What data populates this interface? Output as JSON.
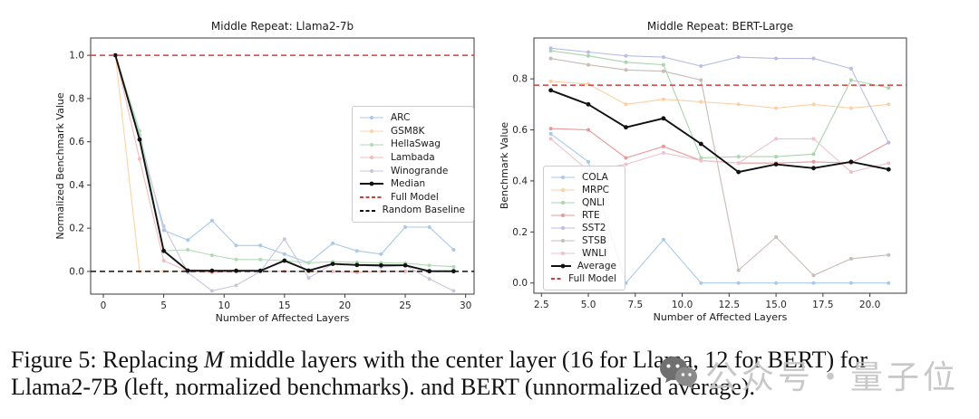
{
  "figure": {
    "caption_prefix": "Figure 5: Replacing ",
    "caption_italic": "M",
    "caption_rest": " middle layers with the center layer (16 for Llama, 12 for BERT) for",
    "caption_line2": "Llama2-7B (left, normalized benchmarks). and BERT (unnormalized average)."
  },
  "watermark": {
    "text": "公众号・量子位"
  },
  "chart_data": [
    {
      "type": "line",
      "name": "llama",
      "title": "Middle Repeat: Llama2-7b",
      "xlabel": "Number of Affected Layers",
      "ylabel": "Normalized Benchmark Value",
      "xlim": [
        -1.05,
        30.7
      ],
      "ylim": [
        -0.105,
        1.08
      ],
      "grid": false,
      "legend_position": "center-right",
      "xticks": {
        "vals": [
          0,
          5,
          10,
          15,
          20,
          25,
          30
        ],
        "labels": [
          "0",
          "5",
          "10",
          "15",
          "20",
          "25",
          "30"
        ]
      },
      "yticks": {
        "vals": [
          0.0,
          0.2,
          0.4,
          0.6,
          0.8,
          1.0
        ],
        "labels": [
          "0.0",
          "0.2",
          "0.4",
          "0.6",
          "0.8",
          "1.0"
        ]
      },
      "x": [
        1,
        3,
        5,
        7,
        9,
        11,
        13,
        15,
        17,
        19,
        21,
        23,
        25,
        27,
        29
      ],
      "series": [
        {
          "name": "ARC",
          "color": "#a8c9e8",
          "bold": false,
          "values": [
            1.0,
            0.63,
            0.19,
            0.145,
            0.235,
            0.12,
            0.12,
            0.08,
            0.04,
            0.13,
            0.095,
            0.08,
            0.205,
            0.205,
            0.1
          ]
        },
        {
          "name": "GSM8K",
          "color": "#fbd3a8",
          "bold": false,
          "values": [
            1.0,
            0.0,
            0.0,
            0.0,
            0.0,
            0.0,
            0.0,
            0.0,
            0.0,
            0.0,
            0.0,
            0.0,
            0.0,
            0.0,
            0.0
          ]
        },
        {
          "name": "HellaSwag",
          "color": "#b2dab3",
          "bold": false,
          "values": [
            1.0,
            0.65,
            0.095,
            0.1,
            0.075,
            0.055,
            0.055,
            0.05,
            0.04,
            0.045,
            0.042,
            0.04,
            0.038,
            0.028,
            0.022
          ]
        },
        {
          "name": "Lambada",
          "color": "#f0bcbc",
          "bold": false,
          "values": [
            1.0,
            0.52,
            0.05,
            0.0,
            -0.005,
            0.0,
            0.0,
            0.0,
            0.0,
            0.0,
            -0.005,
            0.0,
            0.0,
            0.0,
            0.0
          ]
        },
        {
          "name": "Winogrande",
          "color": "#c8c6dd",
          "bold": false,
          "values": [
            1.0,
            0.61,
            0.21,
            -0.005,
            -0.09,
            -0.065,
            0.0,
            0.15,
            -0.03,
            0.035,
            0.03,
            0.02,
            0.028,
            -0.035,
            -0.09
          ]
        },
        {
          "name": "Median",
          "color": "#111111",
          "bold": true,
          "values": [
            1.0,
            0.61,
            0.095,
            0.004,
            0.003,
            0.003,
            0.003,
            0.05,
            0.004,
            0.035,
            0.03,
            0.028,
            0.028,
            0.001,
            0.001
          ]
        }
      ],
      "hlines": [
        {
          "name": "Full Model",
          "y": 1.0,
          "color": "#d43d3d"
        },
        {
          "name": "Random Baseline",
          "y": 0.0,
          "color": "#111111"
        }
      ]
    },
    {
      "type": "line",
      "name": "bert",
      "title": "Middle Repeat: BERT-Large",
      "xlabel": "Number of Affected Layers",
      "ylabel": "Benchmark Value",
      "xlim": [
        2.1,
        21.95
      ],
      "ylim": [
        -0.04,
        0.96
      ],
      "grid": false,
      "legend_position": "bottom-left",
      "xticks": {
        "vals": [
          2.5,
          5,
          7.5,
          10,
          12.5,
          15,
          17.5,
          20
        ],
        "labels": [
          "2.5",
          "5.0",
          "7.5",
          "10.0",
          "12.5",
          "15.0",
          "17.5",
          "20.0"
        ]
      },
      "yticks": {
        "vals": [
          0.0,
          0.2,
          0.4,
          0.6,
          0.8
        ],
        "labels": [
          "0.0",
          "0.2",
          "0.4",
          "0.6",
          "0.8"
        ]
      },
      "x": [
        3,
        5,
        7,
        9,
        11,
        13,
        15,
        17,
        19,
        21
      ],
      "series": [
        {
          "name": "COLA",
          "color": "#a8c9e8",
          "bold": false,
          "values": [
            0.585,
            0.475,
            0.0,
            0.17,
            0.0,
            0.0,
            0.0,
            0.0,
            0.0,
            0.0
          ]
        },
        {
          "name": "MRPC",
          "color": "#fccfa4",
          "bold": false,
          "values": [
            0.79,
            0.78,
            0.7,
            0.72,
            0.71,
            0.7,
            0.685,
            0.7,
            0.685,
            0.7
          ]
        },
        {
          "name": "QNLI",
          "color": "#a9d5ab",
          "bold": false,
          "values": [
            0.91,
            0.89,
            0.865,
            0.855,
            0.49,
            0.495,
            0.495,
            0.505,
            0.795,
            0.765
          ]
        },
        {
          "name": "RTE",
          "color": "#e59a9c",
          "bold": false,
          "values": [
            0.605,
            0.6,
            0.49,
            0.535,
            0.48,
            0.47,
            0.47,
            0.475,
            0.47,
            0.55
          ]
        },
        {
          "name": "SST2",
          "color": "#b9bde4",
          "bold": false,
          "values": [
            0.92,
            0.905,
            0.89,
            0.885,
            0.85,
            0.885,
            0.88,
            0.88,
            0.84,
            0.55
          ]
        },
        {
          "name": "STSB",
          "color": "#c6bcb8",
          "bold": false,
          "values": [
            0.88,
            0.855,
            0.835,
            0.83,
            0.795,
            0.05,
            0.18,
            0.03,
            0.095,
            0.11
          ]
        },
        {
          "name": "WNLI",
          "color": "#ecc2ce",
          "bold": false,
          "values": [
            0.565,
            0.44,
            0.465,
            0.51,
            0.48,
            0.47,
            0.565,
            0.565,
            0.435,
            0.47
          ]
        },
        {
          "name": "Average",
          "color": "#111111",
          "bold": true,
          "values": [
            0.755,
            0.7,
            0.61,
            0.645,
            0.545,
            0.435,
            0.465,
            0.45,
            0.475,
            0.445
          ]
        }
      ],
      "hlines": [
        {
          "name": "Full Model",
          "y": 0.775,
          "color": "#d43d3d"
        }
      ]
    }
  ]
}
